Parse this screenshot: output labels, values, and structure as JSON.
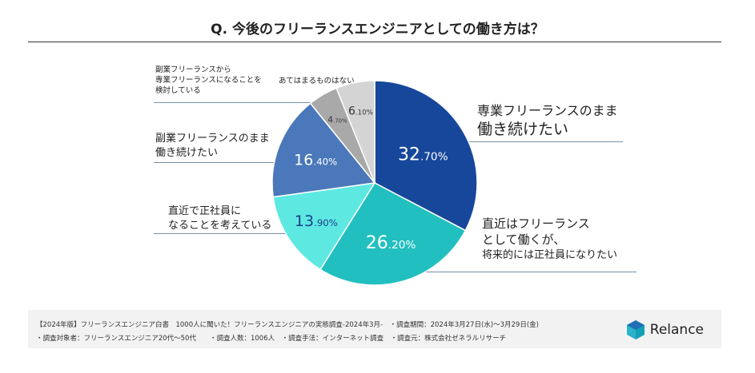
{
  "title": "Q. 今後のフリーランスエンジニアとしての働き方は？",
  "chart_data": {
    "type": "pie",
    "title": "Q. 今後のフリーランスエンジニアとしての働き方は？",
    "slices": [
      {
        "label": "専業フリーランスのまま働き続けたい",
        "value": 32.7,
        "display": [
          "32",
          ".70%"
        ],
        "color": "#17479b"
      },
      {
        "label": "直近はフリーランスとして働くが、将来的には正社員になりたい",
        "value": 26.2,
        "display": [
          "26",
          ".20%"
        ],
        "color": "#22bfc0"
      },
      {
        "label": "直近で正社員になることを考えている",
        "value": 13.9,
        "display": [
          "13",
          ".90%"
        ],
        "color": "#5de9e2"
      },
      {
        "label": "副業フリーランスのまま働き続けたい",
        "value": 16.4,
        "display": [
          "16",
          ".40%"
        ],
        "color": "#4a78ba"
      },
      {
        "label": "副業フリーランスから専業フリーランスになることを検討している",
        "value": 4.7,
        "display": [
          "4",
          ".70%"
        ],
        "color": "#a9a9a9"
      },
      {
        "label": "あてはまるものはない",
        "value": 6.1,
        "display": [
          "6",
          ".10%"
        ],
        "color": "#d4d4d4"
      }
    ]
  },
  "labels": {
    "s1": [
      "専業フリーランスのまま",
      "働き続けたい"
    ],
    "s2": [
      "直近はフリーランス",
      "として働くが、",
      "将来的には正社員になりたい"
    ],
    "s3": [
      "直近で正社員に",
      "なることを考えている"
    ],
    "s4": [
      "副業フリーランスのまま",
      "働き続けたい"
    ],
    "s5": [
      "副業フリーランスから",
      "専業フリーランスになることを",
      "検討している"
    ],
    "s6": [
      "あてはまるものはない"
    ]
  },
  "footer": {
    "line1": "【2024年版】フリーランスエンジニア白書　1000人に聞いた！フリーランスエンジニアの実態調査-2024年3月-　・調査期間：2024年3月27日(水)～3月29日(金)",
    "line2": "・調査対象者：フリーランスエンジニア20代～50代　　・調査人数：1006人　・調査手法：インターネット調査　・調査元：株式会社ゼネラルリサーチ",
    "logo": "Relance"
  }
}
